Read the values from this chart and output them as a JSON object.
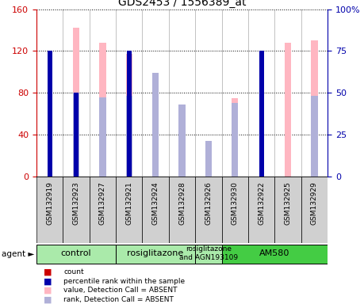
{
  "title": "GDS2453 / 1556389_at",
  "samples": [
    "GSM132919",
    "GSM132923",
    "GSM132927",
    "GSM132921",
    "GSM132924",
    "GSM132928",
    "GSM132926",
    "GSM132930",
    "GSM132922",
    "GSM132925",
    "GSM132929"
  ],
  "count_values": [
    115,
    0,
    0,
    0,
    0,
    0,
    0,
    0,
    112,
    0,
    0
  ],
  "percentile_values": [
    75,
    50,
    0,
    75,
    0,
    0,
    0,
    0,
    75,
    0,
    0
  ],
  "pink_bar_values": [
    0,
    142,
    128,
    117,
    88,
    68,
    22,
    75,
    0,
    128,
    130
  ],
  "lavender_bar_values": [
    0,
    50,
    47,
    48,
    62,
    43,
    21,
    44,
    0,
    0,
    48
  ],
  "count_has_value": [
    true,
    false,
    false,
    false,
    false,
    false,
    false,
    false,
    true,
    false,
    false
  ],
  "percentile_has_value": [
    true,
    true,
    false,
    true,
    false,
    false,
    false,
    false,
    true,
    false,
    false
  ],
  "pink_has_value": [
    false,
    true,
    true,
    true,
    true,
    true,
    true,
    true,
    false,
    true,
    true
  ],
  "lavender_has_value": [
    false,
    true,
    true,
    true,
    true,
    true,
    true,
    true,
    false,
    false,
    true
  ],
  "ylim_left": [
    0,
    160
  ],
  "ylim_right": [
    0,
    100
  ],
  "red_color": "#CC0000",
  "blue_color": "#0000AA",
  "pink_color": "#FFB6C1",
  "lavender_color": "#B0B0D8",
  "pink_bar_width": 0.25,
  "count_bar_width": 0.18,
  "group_spans": [
    {
      "start": 0,
      "end": 2,
      "label": "control",
      "color": "#aaeaaa"
    },
    {
      "start": 3,
      "end": 5,
      "label": "rosiglitazone",
      "color": "#aaeaaa"
    },
    {
      "start": 6,
      "end": 6,
      "label": "rosiglitazone\nand AGN193109",
      "color": "#aaeaaa"
    },
    {
      "start": 7,
      "end": 10,
      "label": "AM580",
      "color": "#44cc44"
    }
  ],
  "sample_box_color": "#d0d0d0",
  "agent_label": "agent",
  "legend": [
    {
      "color": "#CC0000",
      "label": "count"
    },
    {
      "color": "#0000AA",
      "label": "percentile rank within the sample"
    },
    {
      "color": "#FFB6C1",
      "label": "value, Detection Call = ABSENT"
    },
    {
      "color": "#B0B0D8",
      "label": "rank, Detection Call = ABSENT"
    }
  ]
}
